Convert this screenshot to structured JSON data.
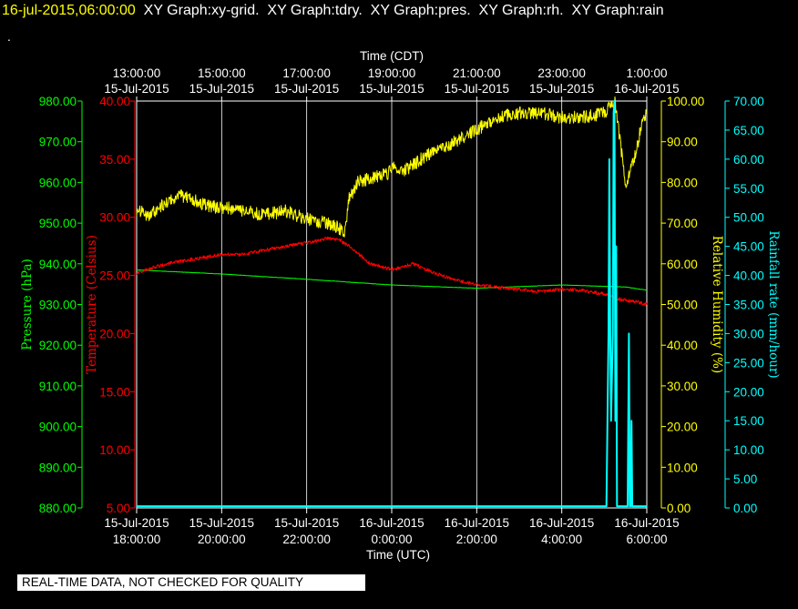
{
  "header": {
    "timestamp": "16-jul-2015,06:00:00",
    "titles": "XY Graph:xy-grid.  XY Graph:tdry.  XY Graph:pres.  XY Graph:rh.  XY Graph:rain",
    "dot": "."
  },
  "quality_notice": "REAL-TIME DATA, NOT CHECKED FOR QUALITY",
  "colors": {
    "background": "#000000",
    "grid": "#ffffff",
    "pressure": "#00ff00",
    "temperature": "#ff0000",
    "humidity": "#ffff00",
    "rain": "#00ffff"
  },
  "chart_data": {
    "type": "line",
    "grid": true,
    "x_unit": "hours since 15-Jul-2015 18:00 UTC",
    "xlim": [
      0,
      12
    ],
    "top_axis": {
      "label": "Time (CDT)",
      "ticks": [
        {
          "x": 0,
          "time": "13:00:00",
          "date": "15-Jul-2015"
        },
        {
          "x": 2,
          "time": "15:00:00",
          "date": "15-Jul-2015"
        },
        {
          "x": 4,
          "time": "17:00:00",
          "date": "15-Jul-2015"
        },
        {
          "x": 6,
          "time": "19:00:00",
          "date": "15-Jul-2015"
        },
        {
          "x": 8,
          "time": "21:00:00",
          "date": "15-Jul-2015"
        },
        {
          "x": 10,
          "time": "23:00:00",
          "date": "15-Jul-2015"
        },
        {
          "x": 12,
          "time": "1:00:00",
          "date": "16-Jul-2015"
        }
      ]
    },
    "bottom_axis": {
      "label": "Time (UTC)",
      "ticks": [
        {
          "x": 0,
          "date": "15-Jul-2015",
          "time": "18:00:00"
        },
        {
          "x": 2,
          "date": "15-Jul-2015",
          "time": "20:00:00"
        },
        {
          "x": 4,
          "date": "15-Jul-2015",
          "time": "22:00:00"
        },
        {
          "x": 6,
          "date": "16-Jul-2015",
          "time": "0:00:00"
        },
        {
          "x": 8,
          "date": "16-Jul-2015",
          "time": "2:00:00"
        },
        {
          "x": 10,
          "date": "16-Jul-2015",
          "time": "4:00:00"
        },
        {
          "x": 12,
          "date": "16-Jul-2015",
          "time": "6:00:00"
        }
      ]
    },
    "axes": {
      "pressure": {
        "label": "Pressure (hPa)",
        "ylim": [
          880,
          980
        ],
        "ticks": [
          "880.00",
          "890.00",
          "900.00",
          "910.00",
          "920.00",
          "930.00",
          "940.00",
          "950.00",
          "960.00",
          "970.00",
          "980.00"
        ]
      },
      "temperature": {
        "label": "Temperature (Celsius)",
        "ylim": [
          5,
          40
        ],
        "ticks": [
          "5.00",
          "10.00",
          "15.00",
          "20.00",
          "25.00",
          "30.00",
          "35.00",
          "40.00"
        ]
      },
      "humidity": {
        "label": "Relative Humidity (%)",
        "ylim": [
          0,
          100
        ],
        "ticks": [
          "0.00",
          "10.00",
          "20.00",
          "30.00",
          "40.00",
          "50.00",
          "60.00",
          "70.00",
          "80.00",
          "90.00",
          "100.00"
        ]
      },
      "rain": {
        "label": "Rainfall rate (mm/hour)",
        "ylim": [
          0,
          70
        ],
        "ticks": [
          "0.00",
          "5.00",
          "10.00",
          "15.00",
          "20.00",
          "25.00",
          "30.00",
          "35.00",
          "40.00",
          "45.00",
          "50.00",
          "55.00",
          "60.00",
          "65.00",
          "70.00"
        ]
      }
    },
    "series": [
      {
        "key": "pressure",
        "axis": "pressure",
        "color": "#00ff00",
        "noise": 0.05,
        "x": [
          0,
          2,
          4,
          6,
          8,
          10,
          11.5,
          12
        ],
        "y": [
          938.5,
          937.5,
          936.2,
          934.8,
          934.0,
          934.8,
          934.3,
          933.5
        ]
      },
      {
        "key": "temperature",
        "axis": "temperature",
        "color": "#ff0000",
        "noise": 0.15,
        "x": [
          0,
          0.5,
          1.0,
          1.5,
          2.0,
          2.5,
          3.0,
          3.5,
          4.0,
          4.5,
          4.8,
          5.1,
          5.5,
          6.0,
          6.3,
          6.5,
          7.0,
          7.5,
          8.0,
          8.5,
          9.0,
          9.5,
          10.0,
          10.5,
          11.0,
          11.3,
          11.6,
          11.8,
          12.0
        ],
        "y": [
          25.2,
          25.8,
          26.2,
          26.5,
          26.8,
          26.8,
          27.2,
          27.5,
          27.8,
          28.2,
          28.0,
          27.2,
          26.0,
          25.5,
          25.8,
          26.0,
          25.2,
          24.6,
          24.2,
          24.0,
          23.8,
          23.6,
          23.8,
          23.7,
          23.4,
          23.0,
          22.8,
          22.7,
          22.5
        ]
      },
      {
        "key": "humidity",
        "axis": "humidity",
        "color": "#ffff00",
        "noise": 1.6,
        "x": [
          0,
          0.3,
          0.7,
          1.0,
          1.3,
          1.7,
          2.0,
          2.5,
          3.0,
          3.5,
          4.0,
          4.5,
          4.9,
          5.0,
          5.2,
          5.5,
          5.9,
          6.0,
          6.3,
          6.6,
          7.0,
          7.5,
          8.0,
          8.5,
          9.0,
          9.5,
          10.0,
          10.5,
          11.0,
          11.15,
          11.25,
          11.5,
          11.6,
          11.8,
          11.9,
          12.0
        ],
        "y": [
          73,
          72,
          75,
          77,
          76,
          74,
          74,
          73,
          72,
          73,
          71,
          70,
          68,
          76,
          80,
          81,
          82,
          84,
          83,
          85,
          88,
          90,
          93,
          96,
          97,
          97,
          96,
          96,
          97,
          99,
          100,
          80,
          82,
          90,
          96,
          97
        ]
      },
      {
        "key": "rain",
        "axis": "rain",
        "color": "#00ffff",
        "noise": 0,
        "x": [
          0,
          11.05,
          11.1,
          11.12,
          11.14,
          11.16,
          11.2,
          11.22,
          11.24,
          11.26,
          11.28,
          11.3,
          11.35,
          11.55,
          11.58,
          11.6,
          11.62,
          11.64,
          11.66,
          11.7,
          11.8,
          12.0
        ],
        "y": [
          0.3,
          0.3,
          30,
          60,
          30,
          15,
          30,
          68,
          70,
          15,
          45,
          0.3,
          0.3,
          0.3,
          30,
          0.3,
          0.3,
          15,
          0.3,
          0.3,
          0.3,
          0.3
        ]
      }
    ]
  }
}
